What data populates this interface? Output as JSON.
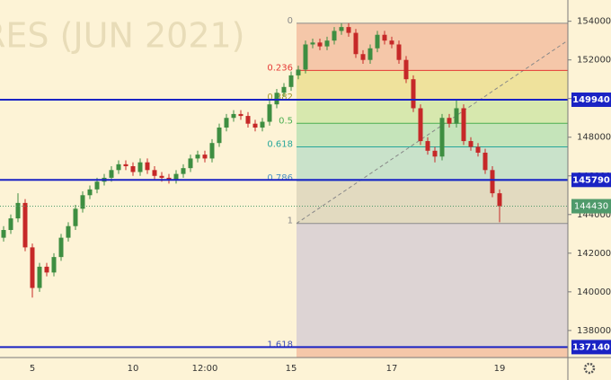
{
  "chart_data": {
    "type": "candlestick",
    "watermark": "RES (JUN 2021)",
    "categories": [
      null,
      null,
      null,
      null,
      "5",
      null,
      null,
      null,
      null,
      null,
      null,
      null,
      null,
      null,
      null,
      null,
      null,
      null,
      "10",
      null,
      null,
      null,
      null,
      null,
      null,
      null,
      null,
      null,
      "12:00",
      null,
      null,
      null,
      null,
      null,
      null,
      null,
      null,
      null,
      null,
      null,
      "15",
      null,
      null,
      null,
      null,
      null,
      null,
      null,
      null,
      null,
      null,
      null,
      null,
      null,
      "17",
      null,
      null,
      null,
      null,
      null,
      null,
      null,
      null,
      null,
      null,
      null,
      null,
      null,
      null,
      "19"
    ],
    "open": [
      142800,
      143200,
      143800,
      144600,
      142300,
      140200,
      141300,
      141000,
      141800,
      142800,
      143400,
      144300,
      145000,
      145300,
      145700,
      145900,
      146300,
      146600,
      146500,
      146200,
      146700,
      146300,
      146000,
      145900,
      145800,
      146100,
      146400,
      146900,
      147100,
      146900,
      147700,
      148500,
      149000,
      149200,
      149100,
      148700,
      148500,
      148800,
      149700,
      150300,
      150600,
      151200,
      151500,
      152800,
      152900,
      152700,
      153000,
      153500,
      153700,
      153400,
      152300,
      152000,
      152600,
      153300,
      153000,
      152800,
      152000,
      151000,
      149500,
      147800,
      147300,
      147000,
      149000,
      148700,
      149500,
      147800,
      147500,
      147200,
      146300,
      145100
    ],
    "high": [
      143400,
      144000,
      145100,
      144800,
      142500,
      141500,
      141500,
      142000,
      143000,
      143600,
      144500,
      145200,
      145500,
      145900,
      146100,
      146500,
      146800,
      146800,
      146700,
      146900,
      146900,
      146500,
      146200,
      146100,
      146300,
      146600,
      147100,
      147300,
      147300,
      147900,
      148700,
      149200,
      149400,
      149400,
      149300,
      148900,
      149000,
      149900,
      150500,
      150800,
      151400,
      151700,
      153000,
      153100,
      153100,
      153200,
      153700,
      153900,
      153900,
      153600,
      152500,
      152800,
      153500,
      153500,
      153200,
      153000,
      152200,
      151200,
      149700,
      148000,
      147500,
      149200,
      149200,
      149900,
      149700,
      148000,
      147700,
      147400,
      146500,
      145300
    ],
    "low": [
      142600,
      143000,
      143600,
      142100,
      139700,
      140000,
      140800,
      140800,
      141600,
      142600,
      143200,
      144100,
      144800,
      145100,
      145500,
      145700,
      146100,
      146300,
      146000,
      146000,
      146100,
      145800,
      145700,
      145600,
      145600,
      145900,
      146200,
      146700,
      146700,
      146700,
      147500,
      148300,
      148800,
      148900,
      148500,
      148300,
      148300,
      148600,
      149500,
      150100,
      150400,
      151000,
      151300,
      152600,
      152500,
      152500,
      152800,
      153300,
      153200,
      152100,
      151800,
      151800,
      152400,
      152800,
      152600,
      151800,
      150800,
      149300,
      147600,
      147100,
      146700,
      146800,
      148500,
      148500,
      147600,
      147300,
      147000,
      146100,
      144900,
      143600
    ],
    "close": [
      143200,
      143800,
      144600,
      142300,
      140200,
      141300,
      141000,
      141800,
      142800,
      143400,
      144300,
      145000,
      145300,
      145700,
      145900,
      146300,
      146600,
      146500,
      146200,
      146700,
      146300,
      146000,
      145900,
      145800,
      146100,
      146400,
      146900,
      147100,
      146900,
      147700,
      148500,
      149000,
      149200,
      149100,
      148700,
      148500,
      148800,
      149700,
      150300,
      150600,
      151200,
      151500,
      152800,
      152900,
      152700,
      153000,
      153500,
      153700,
      153400,
      152300,
      152000,
      152600,
      153300,
      153000,
      152800,
      152000,
      151000,
      149500,
      147800,
      147300,
      147000,
      149000,
      148700,
      149500,
      147800,
      147500,
      147200,
      146300,
      145100,
      144430
    ],
    "up_color": "#3e8e41",
    "down_color": "#c62828",
    "ylim": [
      136600,
      155100
    ],
    "yticks": [
      138000,
      140000,
      142000,
      144000,
      146000,
      148000,
      150000,
      152000,
      154000
    ],
    "fib": {
      "start": 153900,
      "end": 143540,
      "levels": [
        0,
        0.236,
        0.382,
        0.5,
        0.618,
        0.786,
        1,
        1.618
      ],
      "line_colors": [
        "#8a8a8a",
        "#e53935",
        "#a59a2a",
        "#4caf50",
        "#26a69a",
        "#4a90c2",
        "#8a8a8a",
        "#3f51b5"
      ],
      "band_colors": [
        "#f2b899",
        "#eadc88",
        "#c9e4a0",
        "#b2dfb0",
        "#b7dcc6",
        "#d8d2b8",
        "#d2c9d3",
        "#f2b899"
      ]
    },
    "price_lines": {
      "values": [
        149940,
        145790,
        137140
      ],
      "color": "#1a23c4"
    },
    "last_price_color": "#4f9a6b"
  }
}
